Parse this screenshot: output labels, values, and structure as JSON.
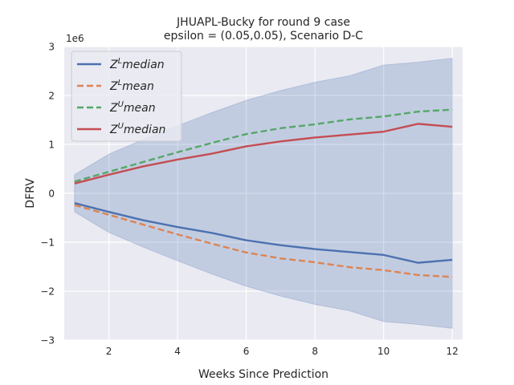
{
  "chart_data": {
    "type": "line",
    "title": "JHUAPL-Bucky for round 9 case",
    "subtitle": "epsilon = (0.05,0.05), Scenario D-C",
    "xlabel": "Weeks Since Prediction",
    "ylabel": "DFRV",
    "y_offset_label": "1e6",
    "xlim": [
      0.7,
      12.3
    ],
    "ylim": [
      -3000000,
      3000000
    ],
    "x_ticks": [
      2,
      4,
      6,
      8,
      10,
      12
    ],
    "x_tick_labels": [
      "2",
      "4",
      "6",
      "8",
      "10",
      "12"
    ],
    "y_ticks": [
      -3000000,
      -2000000,
      -1000000,
      0,
      1000000,
      2000000,
      3000000
    ],
    "y_tick_labels": [
      "−3",
      "−2",
      "−1",
      "0",
      "1",
      "2",
      "3"
    ],
    "grid": true,
    "legend_position": "top-left",
    "x": [
      1,
      2,
      3,
      4,
      5,
      6,
      7,
      8,
      9,
      10,
      11,
      12
    ],
    "band": {
      "color": "#4c72b0",
      "upper": [
        380000,
        800000,
        1100000,
        1380000,
        1650000,
        1900000,
        2100000,
        2270000,
        2400000,
        2620000,
        2680000,
        2760000
      ],
      "lower": [
        -380000,
        -800000,
        -1100000,
        -1380000,
        -1650000,
        -1900000,
        -2100000,
        -2270000,
        -2400000,
        -2620000,
        -2680000,
        -2760000
      ]
    },
    "series": [
      {
        "name_main": "Z",
        "name_sup": "L",
        "name_suffix": "median",
        "color": "#4c72b0",
        "dashed": false,
        "values": [
          -200000,
          -380000,
          -550000,
          -690000,
          -810000,
          -960000,
          -1060000,
          -1140000,
          -1200000,
          -1260000,
          -1420000,
          -1360000
        ]
      },
      {
        "name_main": "Z",
        "name_sup": "L",
        "name_suffix": "mean",
        "color": "#dd8452",
        "dashed": true,
        "values": [
          -240000,
          -440000,
          -640000,
          -840000,
          -1030000,
          -1210000,
          -1330000,
          -1410000,
          -1510000,
          -1570000,
          -1670000,
          -1710000
        ]
      },
      {
        "name_main": "Z",
        "name_sup": "U",
        "name_suffix": "mean",
        "color": "#55a868",
        "dashed": true,
        "values": [
          240000,
          440000,
          640000,
          840000,
          1030000,
          1210000,
          1330000,
          1410000,
          1510000,
          1570000,
          1670000,
          1710000
        ]
      },
      {
        "name_main": "Z",
        "name_sup": "U",
        "name_suffix": "median",
        "color": "#c44e52",
        "dashed": false,
        "values": [
          200000,
          380000,
          550000,
          690000,
          810000,
          960000,
          1060000,
          1140000,
          1200000,
          1260000,
          1420000,
          1360000
        ]
      }
    ]
  }
}
